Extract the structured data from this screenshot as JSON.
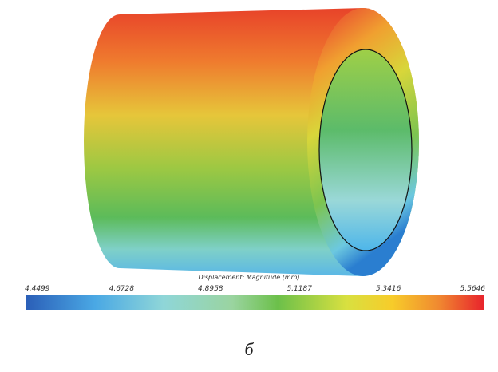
{
  "legend": {
    "title": "Displacement: Magnitude (mm)",
    "ticks": [
      4.4499,
      4.6728,
      4.8958,
      5.1187,
      5.3416,
      5.5646
    ]
  },
  "caption": "б"
}
